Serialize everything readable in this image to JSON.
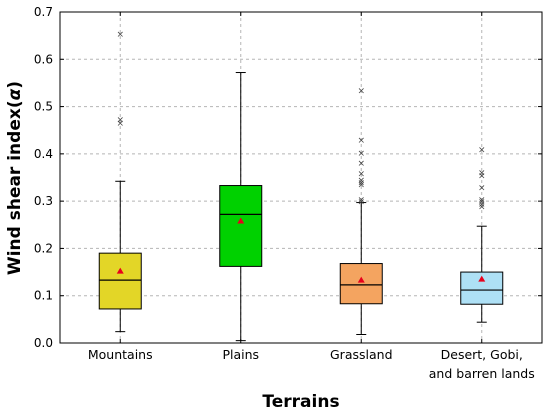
{
  "chart_data": {
    "type": "box",
    "xlabel": "Terrains",
    "ylabel": "Wind shear index(",
    "ylabel_symbol": "α",
    "ylabel_close": ")",
    "ylim": [
      0,
      0.7
    ],
    "yticks": [
      "0.0",
      "0.1",
      "0.2",
      "0.3",
      "0.4",
      "0.5",
      "0.6",
      "0.7"
    ],
    "grid": true,
    "categories": [
      [
        "Mountains"
      ],
      [
        "Plains"
      ],
      [
        "Grassland"
      ],
      [
        "Desert, Gobi,",
        "and barren lands"
      ]
    ],
    "boxes": [
      {
        "color": "#e3d627",
        "whisker_low": 0.024,
        "q1": 0.072,
        "median": 0.133,
        "q3": 0.19,
        "whisker_high": 0.342,
        "mean": 0.152,
        "outliers": [
          0.466,
          0.474,
          0.655
        ]
      },
      {
        "color": "#00d100",
        "whisker_low": 0.005,
        "q1": 0.162,
        "median": 0.272,
        "q3": 0.333,
        "whisker_high": 0.572,
        "mean": 0.258,
        "outliers": []
      },
      {
        "color": "#f4a460",
        "whisker_low": 0.018,
        "q1": 0.083,
        "median": 0.123,
        "q3": 0.168,
        "whisker_high": 0.297,
        "mean": 0.133,
        "outliers": [
          0.3,
          0.305,
          0.336,
          0.34,
          0.346,
          0.36,
          0.382,
          0.403,
          0.43,
          0.535
        ]
      },
      {
        "color": "#aee0f5",
        "whisker_low": 0.044,
        "q1": 0.082,
        "median": 0.112,
        "q3": 0.15,
        "whisker_high": 0.247,
        "mean": 0.135,
        "outliers": [
          0.29,
          0.295,
          0.3,
          0.305,
          0.33,
          0.355,
          0.362,
          0.41
        ]
      }
    ],
    "mean_marker_color": "#e8001c",
    "outlier_marker": "×"
  }
}
